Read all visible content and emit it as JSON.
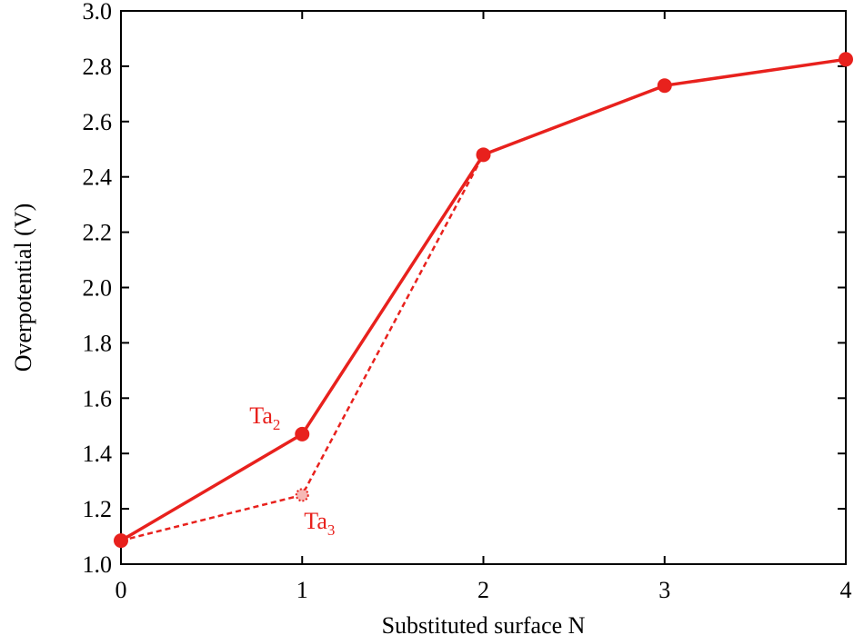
{
  "chart_data": {
    "type": "line",
    "xlabel": "Substituted surface N",
    "ylabel": "Overpotential (V)",
    "xlim": [
      0,
      4
    ],
    "ylim": [
      1.0,
      3.0
    ],
    "x_ticks": [
      "0",
      "1",
      "2",
      "3",
      "4"
    ],
    "y_ticks": [
      "1.0",
      "1.2",
      "1.4",
      "1.6",
      "1.8",
      "2.0",
      "2.2",
      "2.4",
      "2.6",
      "2.8",
      "3.0"
    ],
    "grid": false,
    "color": "#e8211d",
    "series": [
      {
        "name": "",
        "line_style": "solid",
        "marker": "filled-circle",
        "points": [
          {
            "x": 0,
            "y": 1.085
          },
          {
            "x": 1,
            "y": 1.47
          },
          {
            "x": 2,
            "y": 2.48
          },
          {
            "x": 3,
            "y": 2.73
          },
          {
            "x": 4,
            "y": 2.825
          }
        ]
      },
      {
        "name": "",
        "line_style": "dashed",
        "marker": "dotted-circle",
        "points": [
          {
            "x": 0,
            "y": 1.085
          },
          {
            "x": 1,
            "y": 1.25
          },
          {
            "x": 2,
            "y": 2.48
          }
        ]
      }
    ],
    "annotations": [
      {
        "base": "Ta",
        "sub": "2",
        "x": 1,
        "y": 1.47,
        "anchor": "upper-left"
      },
      {
        "base": "Ta",
        "sub": "3",
        "x": 1,
        "y": 1.25,
        "anchor": "lower-right"
      }
    ]
  }
}
